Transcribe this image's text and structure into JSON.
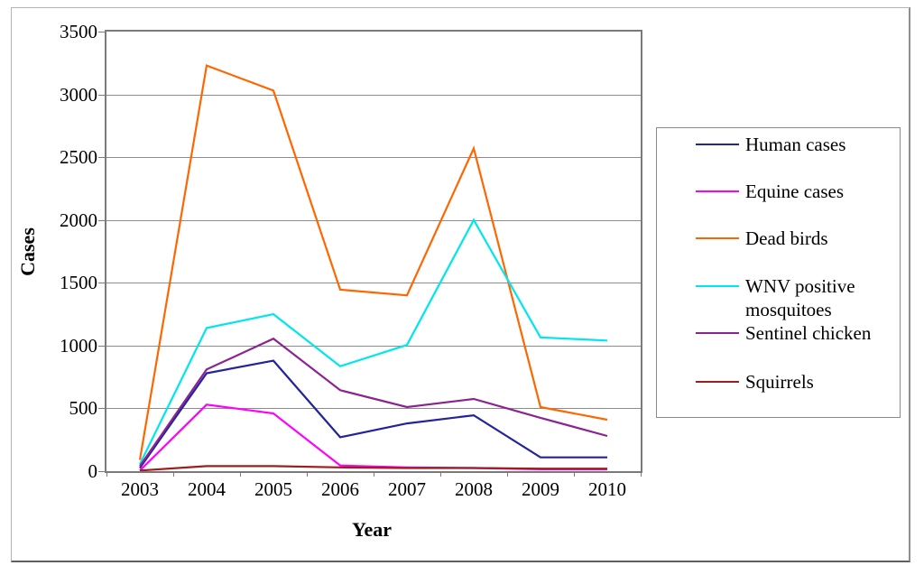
{
  "chart_data": {
    "type": "line",
    "title": "",
    "xlabel": "Year",
    "ylabel": "Cases",
    "ylim": [
      0,
      3500
    ],
    "y_ticks": [
      0,
      500,
      1000,
      1500,
      2000,
      2500,
      3000,
      3500
    ],
    "categories": [
      "2003",
      "2004",
      "2005",
      "2006",
      "2007",
      "2008",
      "2009",
      "2010"
    ],
    "grid": "horizontal-gray",
    "legend_position": "right",
    "series": [
      {
        "name": "Human cases",
        "color": "#23239B",
        "values": [
          25,
          780,
          880,
          270,
          380,
          445,
          110,
          110
        ]
      },
      {
        "name": "Equine cases",
        "color": "#FF00FF",
        "values": [
          5,
          530,
          460,
          45,
          30,
          25,
          15,
          15
        ]
      },
      {
        "name": "Dead birds",
        "color": "#FF6600",
        "values": [
          90,
          3230,
          3030,
          1445,
          1400,
          2570,
          510,
          410
        ]
      },
      {
        "name": "WNV positive mosquitoes",
        "color": "#00E6EE",
        "values": [
          55,
          1140,
          1250,
          835,
          1005,
          2000,
          1065,
          1040
        ]
      },
      {
        "name": "Sentinel chicken",
        "color": "#8B2491",
        "values": [
          40,
          810,
          1055,
          645,
          510,
          575,
          425,
          280
        ]
      },
      {
        "name": "Squirrels",
        "color": "#9E1E1E",
        "values": [
          5,
          40,
          40,
          30,
          25,
          25,
          20,
          20
        ]
      }
    ]
  },
  "layout_colors": {
    "gridline": "#8c8c8c",
    "plot_border": "#7a7a7a",
    "legend_border": "#8a8a8a"
  }
}
